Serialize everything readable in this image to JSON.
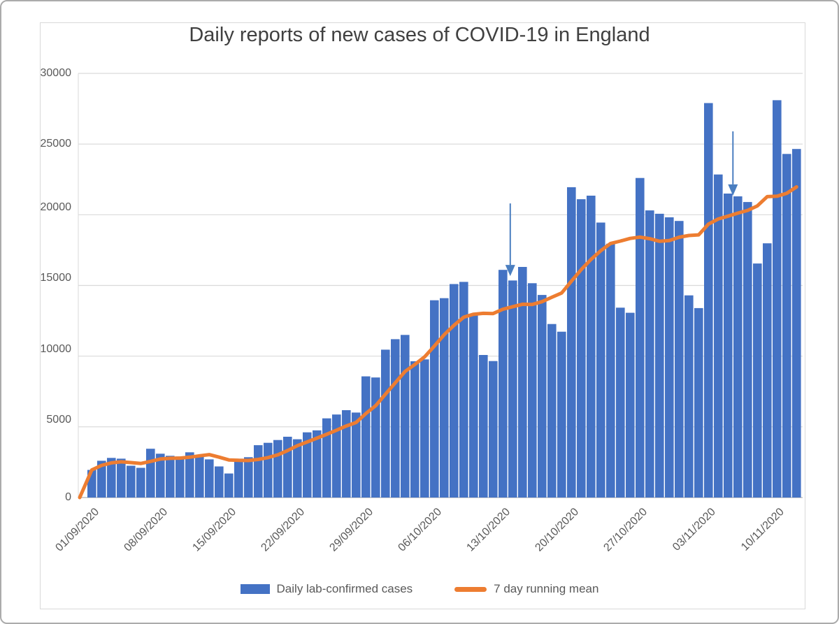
{
  "title": "Daily reports of new cases of COVID-19 in England",
  "y_axis": {
    "labels": [
      "30000",
      "25000",
      "20000",
      "15000",
      "10000",
      "5000",
      "0"
    ],
    "max": 30000,
    "gridline_color": "#d9d9d9",
    "baseline_color": "#bfbfbf",
    "text_color": "#595959"
  },
  "x_axis": {
    "labels": [
      "01/09/2020",
      "08/09/2020",
      "15/09/2020",
      "22/09/2020",
      "29/09/2020",
      "06/10/2020",
      "13/10/2020",
      "20/10/2020",
      "27/10/2020",
      "03/11/2020",
      "10/11/2020"
    ],
    "tick_every_days": 7
  },
  "legend": {
    "items": [
      {
        "label": "Daily lab-confirmed cases",
        "type": "bar",
        "color": "#4472c4"
      },
      {
        "label": "7 day running mean",
        "type": "line",
        "color": "#ed7d31"
      }
    ]
  },
  "annotations": {
    "arrows": [
      {
        "type": "down-arrow",
        "near_date": "14/10/2020",
        "x_index": 42.75,
        "from_value": 20800,
        "to_value": 16350,
        "color": "#4a7ec0"
      },
      {
        "type": "down-arrow",
        "near_date": "05/11/2020",
        "x_index": 65.5,
        "from_value": 25900,
        "to_value": 22050,
        "color": "#4a7ec0"
      }
    ]
  },
  "chart_data": {
    "type": "bar",
    "title": "Daily reports of new cases of COVID-19 in England",
    "xlabel": "",
    "ylabel": "",
    "ylim": [
      0,
      30000
    ],
    "grid": true,
    "legend_position": "bottom",
    "categories": [
      "01/09/2020",
      "02/09/2020",
      "03/09/2020",
      "04/09/2020",
      "05/09/2020",
      "06/09/2020",
      "07/09/2020",
      "08/09/2020",
      "09/09/2020",
      "10/09/2020",
      "11/09/2020",
      "12/09/2020",
      "13/09/2020",
      "14/09/2020",
      "15/09/2020",
      "16/09/2020",
      "17/09/2020",
      "18/09/2020",
      "19/09/2020",
      "20/09/2020",
      "21/09/2020",
      "22/09/2020",
      "23/09/2020",
      "24/09/2020",
      "25/09/2020",
      "26/09/2020",
      "27/09/2020",
      "28/09/2020",
      "29/09/2020",
      "30/09/2020",
      "01/10/2020",
      "02/10/2020",
      "03/10/2020",
      "04/10/2020",
      "05/10/2020",
      "06/10/2020",
      "07/10/2020",
      "08/10/2020",
      "09/10/2020",
      "10/10/2020",
      "11/10/2020",
      "12/10/2020",
      "13/10/2020",
      "14/10/2020",
      "15/10/2020",
      "16/10/2020",
      "17/10/2020",
      "18/10/2020",
      "19/10/2020",
      "20/10/2020",
      "21/10/2020",
      "22/10/2020",
      "23/10/2020",
      "24/10/2020",
      "25/10/2020",
      "26/10/2020",
      "27/10/2020",
      "28/10/2020",
      "29/10/2020",
      "30/10/2020",
      "31/10/2020",
      "01/11/2020",
      "02/11/2020",
      "03/11/2020",
      "04/11/2020",
      "05/11/2020",
      "06/11/2020",
      "07/11/2020",
      "08/11/2020",
      "09/11/2020",
      "10/11/2020",
      "11/11/2020",
      "12/11/2020"
    ],
    "series": [
      {
        "name": "Daily lab-confirmed cases",
        "type": "bar",
        "color": "#4472c4",
        "values": [
          1950,
          2600,
          2800,
          2750,
          2250,
          2100,
          3450,
          3100,
          2950,
          2900,
          3200,
          2950,
          2700,
          2200,
          1700,
          2750,
          2850,
          3700,
          3870,
          4070,
          4300,
          4120,
          4610,
          4750,
          5600,
          5870,
          6180,
          6010,
          8570,
          8490,
          10460,
          11200,
          11500,
          9640,
          9770,
          13950,
          14100,
          15100,
          15250,
          12950,
          10080,
          9650,
          16100,
          15350,
          16310,
          15160,
          14330,
          12270,
          11730,
          21950,
          21100,
          21350,
          19450,
          17950,
          13430,
          13070,
          22600,
          20310,
          20070,
          19820,
          19560,
          14300,
          13400,
          27900,
          22850,
          21500,
          21300,
          20900,
          16550,
          17980,
          28100,
          24300,
          24650
        ]
      },
      {
        "name": "7 day running mean",
        "type": "line",
        "color": "#ed7d31",
        "derivation": "trailing mean of up to 7 most recent daily values, line anchored at 0 on the axis start"
      }
    ]
  }
}
